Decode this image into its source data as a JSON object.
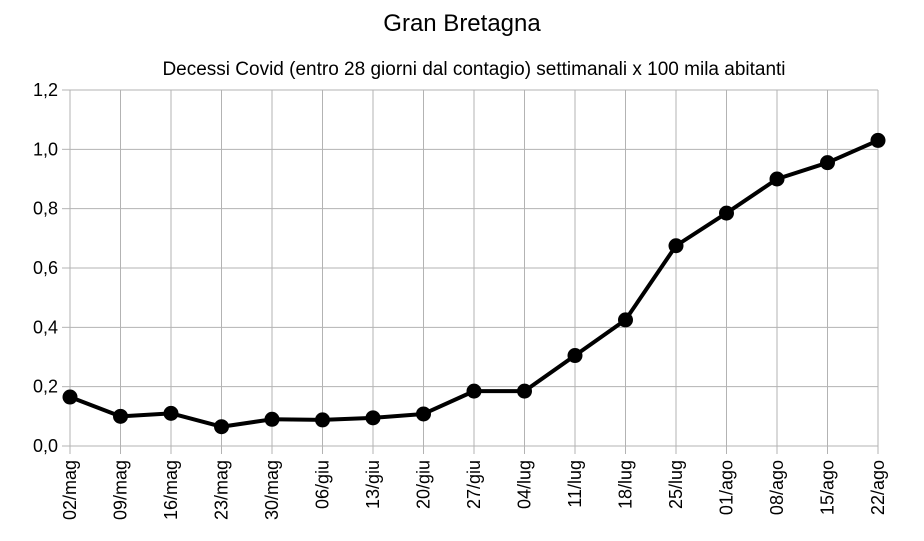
{
  "chart_data": {
    "type": "line",
    "title": "Gran Bretagna",
    "subtitle": "Decessi Covid (entro 28 giorni dal contagio) settimanali x 100 mila abitanti",
    "xlabel": "",
    "ylabel": "",
    "ylim": [
      0,
      1.2
    ],
    "yticks": [
      "0,0",
      "0,2",
      "0,4",
      "0,6",
      "0,8",
      "1,0",
      "1,2"
    ],
    "grid": true,
    "categories": [
      "02/mag",
      "09/mag",
      "16/mag",
      "23/mag",
      "30/mag",
      "06/giu",
      "13/giu",
      "20/giu",
      "27/giu",
      "04/lug",
      "11/lug",
      "18/lug",
      "25/lug",
      "01/ago",
      "08/ago",
      "15/ago",
      "22/ago"
    ],
    "series": [
      {
        "values": [
          0.165,
          0.1,
          0.11,
          0.065,
          0.09,
          0.088,
          0.095,
          0.108,
          0.185,
          0.185,
          0.305,
          0.425,
          0.675,
          0.785,
          0.9,
          0.955,
          1.03
        ],
        "color": "#000000"
      }
    ]
  }
}
